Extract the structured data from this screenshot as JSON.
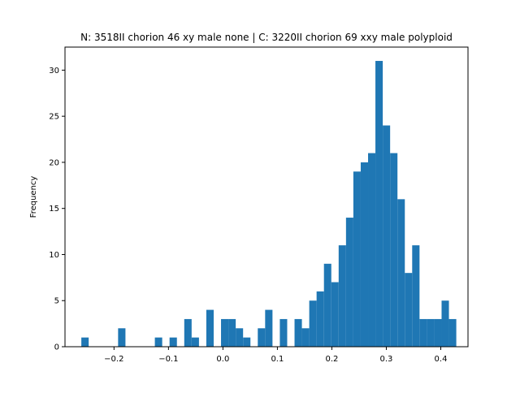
{
  "chart_data": {
    "type": "histogram",
    "title": "N: 3518II chorion 46 xy male none | C: 3220II chorion 69 xxy male polyploid",
    "xlabel": "",
    "ylabel": "Frequency",
    "xlim": [
      -0.29,
      0.45
    ],
    "ylim": [
      0,
      32.5
    ],
    "xticks": [
      -0.2,
      -0.1,
      0.0,
      0.1,
      0.2,
      0.3,
      0.4
    ],
    "xtick_labels": [
      "−0.2",
      "−0.1",
      "0.0",
      "0.1",
      "0.2",
      "0.3",
      "0.4"
    ],
    "yticks": [
      0,
      5,
      10,
      15,
      20,
      25,
      30
    ],
    "ytick_labels": [
      "0",
      "5",
      "10",
      "15",
      "20",
      "25",
      "30"
    ],
    "grid": false,
    "bar_color": "#1f77b4",
    "bins": {
      "start": -0.26,
      "width": 0.0135,
      "counts": [
        1,
        0,
        0,
        0,
        0,
        2,
        0,
        0,
        0,
        0,
        1,
        0,
        1,
        0,
        3,
        1,
        0,
        4,
        0,
        3,
        3,
        2,
        1,
        0,
        2,
        4,
        0,
        3,
        0,
        3,
        2,
        5,
        6,
        9,
        7,
        11,
        14,
        19,
        20,
        21,
        31,
        24,
        21,
        16,
        8,
        11,
        3,
        3,
        3,
        5,
        3
      ]
    }
  }
}
